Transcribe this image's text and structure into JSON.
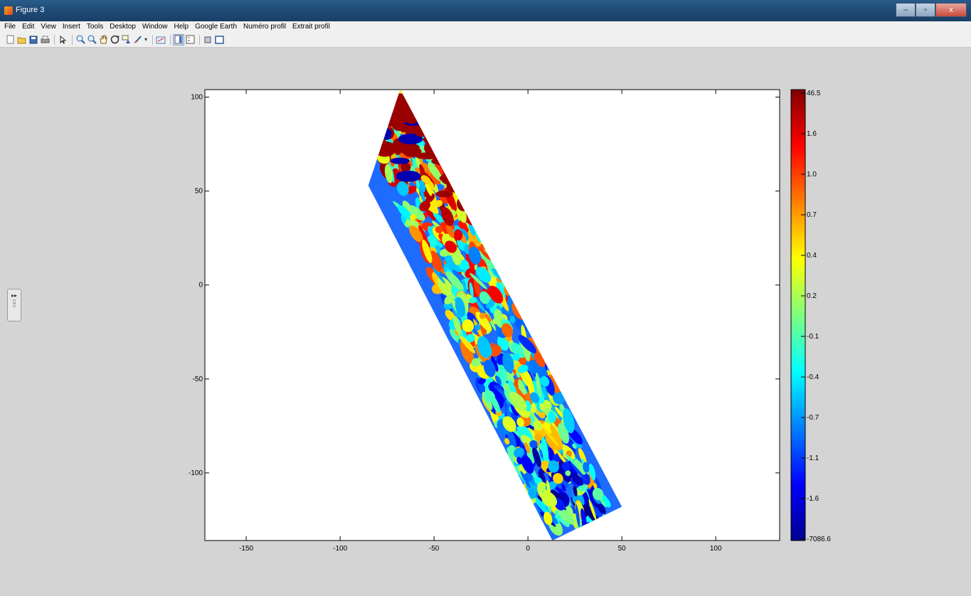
{
  "window": {
    "title": "Figure 3",
    "controls": [
      "–",
      "▫",
      "x"
    ]
  },
  "menu": {
    "items": [
      "File",
      "Edit",
      "View",
      "Insert",
      "Tools",
      "Desktop",
      "Window",
      "Help",
      "Google Earth",
      "Numéro profil",
      "Extrait profil"
    ]
  },
  "toolbar": {
    "icons": [
      "new-figure-icon",
      "open-file-icon",
      "save-icon",
      "print-icon",
      "edit-plot-arrow-icon",
      "zoom-in-icon",
      "zoom-out-icon",
      "pan-hand-icon",
      "rotate-3d-icon",
      "data-cursor-icon",
      "brush-icon",
      "link-plot-icon",
      "colorbar-icon",
      "legend-icon",
      "hide-plot-tools-icon",
      "show-plot-tools-icon"
    ],
    "pressed": [
      "colorbar-icon"
    ]
  },
  "chart_data": {
    "type": "heatmap",
    "title": "",
    "xlabel": "",
    "ylabel": "",
    "xlim": [
      -172,
      134
    ],
    "ylim": [
      -136,
      104
    ],
    "x_ticks": [
      -150,
      -100,
      -50,
      0,
      50,
      100
    ],
    "y_ticks": [
      100,
      50,
      0,
      -50,
      -100
    ],
    "grid": false,
    "colormap": "jet",
    "colorbar": {
      "placement": "right",
      "labels": [
        "46.5",
        "1.6",
        "1.0",
        "0.7",
        "0.4",
        "0.2",
        "-0.1",
        "-0.4",
        "-0.7",
        "-1.1",
        "-1.6",
        "-7086.6"
      ]
    },
    "data_strip": {
      "description_of_extent": "tilted survey strip",
      "corners": [
        [
          -68,
          104
        ],
        [
          -85,
          53
        ],
        [
          13,
          -136
        ],
        [
          50,
          -118
        ]
      ]
    }
  }
}
